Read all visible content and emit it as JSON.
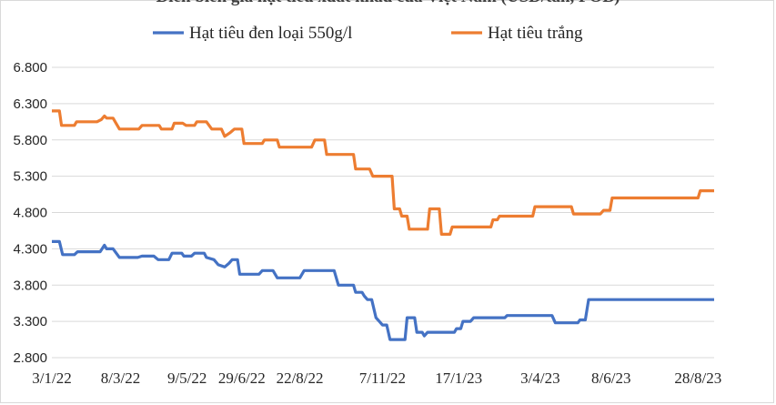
{
  "chart_data": {
    "type": "line",
    "title": "",
    "xlabel": "",
    "ylabel": "",
    "ylim": [
      2800,
      6800
    ],
    "y_ticks": [
      "2.800",
      "3.300",
      "3.800",
      "4.300",
      "4.800",
      "5.300",
      "5.800",
      "6.300",
      "6.800"
    ],
    "y_tick_values": [
      2800,
      3300,
      3800,
      4300,
      4800,
      5300,
      5800,
      6300,
      6800
    ],
    "x_ticks": [
      "3/1/22",
      "8/3/22",
      "9/5/22",
      "29/6/22",
      "22/8/22",
      "7/11/22",
      "17/1/23",
      "3/4/23",
      "8/6/23",
      "28/8/23"
    ],
    "x_tick_dates": [
      "2022-01-03",
      "2022-03-08",
      "2022-05-09",
      "2022-06-29",
      "2022-08-22",
      "2022-11-07",
      "2023-01-17",
      "2023-04-03",
      "2023-06-08",
      "2023-08-28"
    ],
    "grid": "horizontal",
    "legend_position": "top",
    "series": [
      {
        "name": "Hạt tiêu đen loại 550g/l",
        "color": "#4472c4",
        "points": [
          [
            "2022-01-03",
            4400
          ],
          [
            "2022-01-10",
            4400
          ],
          [
            "2022-01-13",
            4220
          ],
          [
            "2022-01-24",
            4220
          ],
          [
            "2022-01-27",
            4260
          ],
          [
            "2022-02-17",
            4260
          ],
          [
            "2022-02-21",
            4350
          ],
          [
            "2022-02-23",
            4300
          ],
          [
            "2022-03-01",
            4300
          ],
          [
            "2022-03-07",
            4180
          ],
          [
            "2022-03-24",
            4180
          ],
          [
            "2022-03-28",
            4200
          ],
          [
            "2022-04-08",
            4200
          ],
          [
            "2022-04-12",
            4150
          ],
          [
            "2022-04-22",
            4150
          ],
          [
            "2022-04-25",
            4240
          ],
          [
            "2022-05-04",
            4240
          ],
          [
            "2022-05-06",
            4200
          ],
          [
            "2022-05-13",
            4200
          ],
          [
            "2022-05-16",
            4240
          ],
          [
            "2022-05-25",
            4240
          ],
          [
            "2022-05-27",
            4180
          ],
          [
            "2022-06-03",
            4150
          ],
          [
            "2022-06-07",
            4080
          ],
          [
            "2022-06-13",
            4050
          ],
          [
            "2022-06-17",
            4100
          ],
          [
            "2022-06-20",
            4150
          ],
          [
            "2022-06-25",
            4150
          ],
          [
            "2022-06-27",
            3950
          ],
          [
            "2022-07-15",
            3950
          ],
          [
            "2022-07-18",
            4000
          ],
          [
            "2022-07-28",
            4000
          ],
          [
            "2022-08-01",
            3900
          ],
          [
            "2022-08-22",
            3900
          ],
          [
            "2022-08-26",
            4000
          ],
          [
            "2022-09-23",
            4000
          ],
          [
            "2022-09-27",
            3800
          ],
          [
            "2022-10-11",
            3800
          ],
          [
            "2022-10-13",
            3700
          ],
          [
            "2022-10-19",
            3700
          ],
          [
            "2022-10-21",
            3650
          ],
          [
            "2022-10-24",
            3600
          ],
          [
            "2022-10-28",
            3600
          ],
          [
            "2022-11-01",
            3350
          ],
          [
            "2022-11-04",
            3300
          ],
          [
            "2022-11-07",
            3250
          ],
          [
            "2022-11-11",
            3250
          ],
          [
            "2022-11-14",
            3050
          ],
          [
            "2022-11-28",
            3050
          ],
          [
            "2022-11-30",
            3350
          ],
          [
            "2022-12-07",
            3350
          ],
          [
            "2022-12-09",
            3150
          ],
          [
            "2022-12-14",
            3150
          ],
          [
            "2022-12-16",
            3100
          ],
          [
            "2022-12-19",
            3150
          ],
          [
            "2023-01-13",
            3150
          ],
          [
            "2023-01-15",
            3200
          ],
          [
            "2023-01-19",
            3200
          ],
          [
            "2023-01-21",
            3300
          ],
          [
            "2023-01-28",
            3300
          ],
          [
            "2023-01-31",
            3350
          ],
          [
            "2023-03-01",
            3350
          ],
          [
            "2023-03-03",
            3380
          ],
          [
            "2023-04-14",
            3380
          ],
          [
            "2023-04-17",
            3280
          ],
          [
            "2023-05-08",
            3280
          ],
          [
            "2023-05-10",
            3320
          ],
          [
            "2023-05-15",
            3320
          ],
          [
            "2023-05-18",
            3600
          ],
          [
            "2023-09-12",
            3600
          ]
        ]
      },
      {
        "name": "Hạt tiêu trắng",
        "color": "#ed7d31",
        "points": [
          [
            "2022-01-03",
            6200
          ],
          [
            "2022-01-10",
            6200
          ],
          [
            "2022-01-12",
            6000
          ],
          [
            "2022-01-24",
            6000
          ],
          [
            "2022-01-26",
            6050
          ],
          [
            "2022-02-14",
            6050
          ],
          [
            "2022-02-18",
            6080
          ],
          [
            "2022-02-21",
            6130
          ],
          [
            "2022-02-23",
            6100
          ],
          [
            "2022-03-01",
            6100
          ],
          [
            "2022-03-03",
            6050
          ],
          [
            "2022-03-07",
            5950
          ],
          [
            "2022-03-25",
            5950
          ],
          [
            "2022-03-28",
            6000
          ],
          [
            "2022-04-13",
            6000
          ],
          [
            "2022-04-15",
            5950
          ],
          [
            "2022-04-25",
            5950
          ],
          [
            "2022-04-27",
            6030
          ],
          [
            "2022-05-05",
            6030
          ],
          [
            "2022-05-08",
            6000
          ],
          [
            "2022-05-16",
            6000
          ],
          [
            "2022-05-18",
            6050
          ],
          [
            "2022-05-27",
            6050
          ],
          [
            "2022-06-01",
            5950
          ],
          [
            "2022-06-10",
            5950
          ],
          [
            "2022-06-13",
            5850
          ],
          [
            "2022-06-18",
            5900
          ],
          [
            "2022-06-22",
            5950
          ],
          [
            "2022-06-29",
            5950
          ],
          [
            "2022-07-01",
            5750
          ],
          [
            "2022-07-18",
            5750
          ],
          [
            "2022-07-20",
            5800
          ],
          [
            "2022-08-01",
            5800
          ],
          [
            "2022-08-03",
            5700
          ],
          [
            "2022-09-02",
            5700
          ],
          [
            "2022-09-05",
            5800
          ],
          [
            "2022-09-14",
            5800
          ],
          [
            "2022-09-16",
            5600
          ],
          [
            "2022-10-11",
            5600
          ],
          [
            "2022-10-13",
            5400
          ],
          [
            "2022-10-26",
            5400
          ],
          [
            "2022-10-29",
            5300
          ],
          [
            "2022-11-16",
            5300
          ],
          [
            "2022-11-18",
            4850
          ],
          [
            "2022-11-23",
            4850
          ],
          [
            "2022-11-25",
            4750
          ],
          [
            "2022-11-30",
            4750
          ],
          [
            "2022-12-02",
            4570
          ],
          [
            "2022-12-19",
            4570
          ],
          [
            "2022-12-21",
            4850
          ],
          [
            "2022-12-30",
            4850
          ],
          [
            "2023-01-01",
            4500
          ],
          [
            "2023-01-09",
            4500
          ],
          [
            "2023-01-11",
            4600
          ],
          [
            "2023-02-16",
            4600
          ],
          [
            "2023-02-18",
            4700
          ],
          [
            "2023-02-22",
            4700
          ],
          [
            "2023-02-24",
            4750
          ],
          [
            "2023-03-27",
            4750
          ],
          [
            "2023-03-29",
            4880
          ],
          [
            "2023-05-02",
            4880
          ],
          [
            "2023-05-04",
            4780
          ],
          [
            "2023-05-29",
            4780
          ],
          [
            "2023-06-01",
            4830
          ],
          [
            "2023-06-07",
            4830
          ],
          [
            "2023-06-09",
            5000
          ],
          [
            "2023-08-28",
            5000
          ],
          [
            "2023-08-30",
            5100
          ],
          [
            "2023-09-12",
            5100
          ]
        ]
      }
    ]
  }
}
